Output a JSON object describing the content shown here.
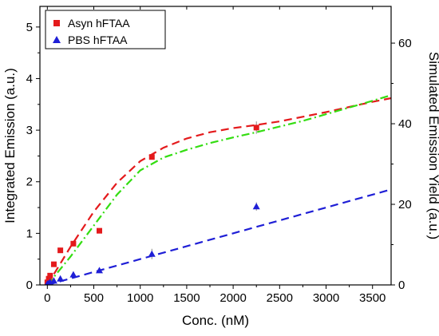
{
  "chart_data": {
    "type": "scatter",
    "xlabel": "Conc. (nM)",
    "ylabel": "Integrated Emission (a.u.)",
    "y2label": "Simulated Emission Yield (a.u.)",
    "xlim": [
      -80,
      3700
    ],
    "ylim": [
      0,
      5.4
    ],
    "y2lim": [
      0,
      69.12
    ],
    "xticks": [
      0,
      500,
      1000,
      1500,
      2000,
      2500,
      3000,
      3500
    ],
    "yticks": [
      0,
      1,
      2,
      3,
      4,
      5
    ],
    "y2ticks": [
      0,
      20,
      40,
      60
    ],
    "grid": false,
    "legend_position": "top-left",
    "series": [
      {
        "name": "Asyn hFTAA",
        "marker": "square",
        "color": "#e41a1c",
        "x": [
          0,
          15,
          30,
          70,
          140,
          280,
          560,
          1125,
          2250
        ],
        "y": [
          0.05,
          0.12,
          0.18,
          0.4,
          0.67,
          0.8,
          1.05,
          2.48,
          3.05
        ],
        "err": [
          0.02,
          0.02,
          0.03,
          0.03,
          0.03,
          0.03,
          0.04,
          0.05,
          0.12
        ]
      },
      {
        "name": "PBS hFTAA",
        "marker": "triangle",
        "color": "#1f1fd6",
        "x": [
          0,
          15,
          30,
          70,
          140,
          280,
          560,
          1125,
          2250
        ],
        "y": [
          0.02,
          0.03,
          0.05,
          0.08,
          0.12,
          0.2,
          0.28,
          0.6,
          1.52
        ],
        "err": [
          0.01,
          0.01,
          0.01,
          0.02,
          0.02,
          0.03,
          0.03,
          0.1,
          0.08
        ]
      }
    ],
    "fits": [
      {
        "color": "#e41a1c",
        "style": "dashed",
        "axis": "left",
        "x": [
          0,
          250,
          500,
          750,
          1000,
          1250,
          1500,
          1750,
          2000,
          2250,
          2500,
          2750,
          3000,
          3250,
          3500,
          3700
        ],
        "y": [
          0.0,
          0.74,
          1.42,
          1.98,
          2.4,
          2.66,
          2.84,
          2.96,
          3.04,
          3.1,
          3.17,
          3.26,
          3.35,
          3.45,
          3.55,
          3.62
        ]
      },
      {
        "color": "#33dd11",
        "style": "dash-dot",
        "axis": "left",
        "x": [
          0,
          250,
          500,
          750,
          1000,
          1250,
          1500,
          1750,
          2000,
          2250,
          2500,
          2750,
          3000,
          3250,
          3500,
          3700
        ],
        "y": [
          0.0,
          0.55,
          1.15,
          1.75,
          2.22,
          2.47,
          2.62,
          2.75,
          2.86,
          2.96,
          3.07,
          3.18,
          3.31,
          3.44,
          3.57,
          3.68
        ]
      },
      {
        "color": "#1f1fd6",
        "style": "dashed",
        "axis": "left",
        "x": [
          0,
          3700
        ],
        "y": [
          0.0,
          1.85
        ]
      }
    ]
  },
  "legend": {
    "items": [
      {
        "label": "Asyn hFTAA",
        "color": "#e41a1c",
        "marker": "square"
      },
      {
        "label": "PBS hFTAA",
        "color": "#1f1fd6",
        "marker": "triangle"
      }
    ]
  },
  "axes": {
    "x_title": "Conc. (nM)",
    "y_title": "Integrated Emission (a.u.)",
    "y2_title": "Simulated Emission Yield (a.u.)"
  }
}
